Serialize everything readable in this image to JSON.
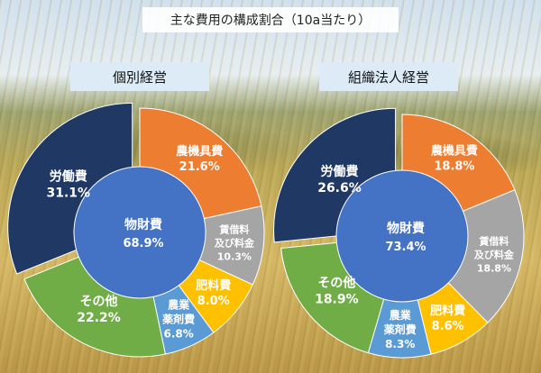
{
  "main_title": "主な費用の構成割合（10a当たり）",
  "colors": {
    "labor": "#203864",
    "machinery": "#ed7d31",
    "rent": "#a5a5a5",
    "fertilizer": "#ffc000",
    "pesticide": "#5b9bd5",
    "other": "#70ad47",
    "material_inner": "#4472c4"
  },
  "chart_data": [
    {
      "type": "pie",
      "title": "個別経営",
      "outer": [
        {
          "key": "machinery",
          "label": [
            "農機具費"
          ],
          "value": 21.6,
          "value_text": "21.6%"
        },
        {
          "key": "rent",
          "label": [
            "賃借料",
            "及び料金"
          ],
          "value": 10.3,
          "value_text": "10.3%"
        },
        {
          "key": "fertilizer",
          "label": [
            "肥料費"
          ],
          "value": 8.0,
          "value_text": "8.0%"
        },
        {
          "key": "pesticide",
          "label": [
            "農業",
            "薬剤費"
          ],
          "value": 6.8,
          "value_text": "6.8%"
        },
        {
          "key": "other",
          "label": [
            "その他"
          ],
          "value": 22.2,
          "value_text": "22.2%"
        },
        {
          "key": "labor",
          "label": [
            "労働費"
          ],
          "value": 31.1,
          "value_text": "31.1%"
        }
      ],
      "inner": {
        "label": "物財費",
        "value": 68.9,
        "value_text": "68.9%"
      }
    },
    {
      "type": "pie",
      "title": "組織法人経営",
      "outer": [
        {
          "key": "machinery",
          "label": [
            "農機具費"
          ],
          "value": 18.8,
          "value_text": "18.8%"
        },
        {
          "key": "rent",
          "label": [
            "賃借料",
            "及び料金"
          ],
          "value": 18.8,
          "value_text": "18.8%"
        },
        {
          "key": "fertilizer",
          "label": [
            "肥料費"
          ],
          "value": 8.6,
          "value_text": "8.6%"
        },
        {
          "key": "pesticide",
          "label": [
            "農業",
            "薬剤費"
          ],
          "value": 8.3,
          "value_text": "8.3%"
        },
        {
          "key": "other",
          "label": [
            "その他"
          ],
          "value": 18.9,
          "value_text": "18.9%"
        },
        {
          "key": "labor",
          "label": [
            "労働費"
          ],
          "value": 26.6,
          "value_text": "26.6%"
        }
      ],
      "inner": {
        "label": "物財費",
        "value": 73.4,
        "value_text": "73.4%"
      }
    }
  ]
}
